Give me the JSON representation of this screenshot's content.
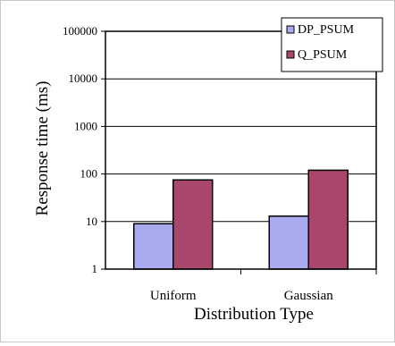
{
  "chart_data": {
    "type": "bar",
    "title": "",
    "xlabel": "Distribution Type",
    "ylabel": "Response time (ms)",
    "yscale": "log",
    "ylim": [
      1,
      100000
    ],
    "yticks": [
      "1",
      "10",
      "100",
      "1000",
      "10000",
      "100000"
    ],
    "grid": "horizontal",
    "legend": "top-right",
    "categories": [
      "Uniform",
      "Gaussian"
    ],
    "series": [
      {
        "name": "DP_PSUM",
        "color": "#aaaaf0",
        "values": [
          9,
          13
        ]
      },
      {
        "name": "Q_PSUM",
        "color": "#a8466c",
        "values": [
          75,
          120
        ]
      }
    ]
  }
}
